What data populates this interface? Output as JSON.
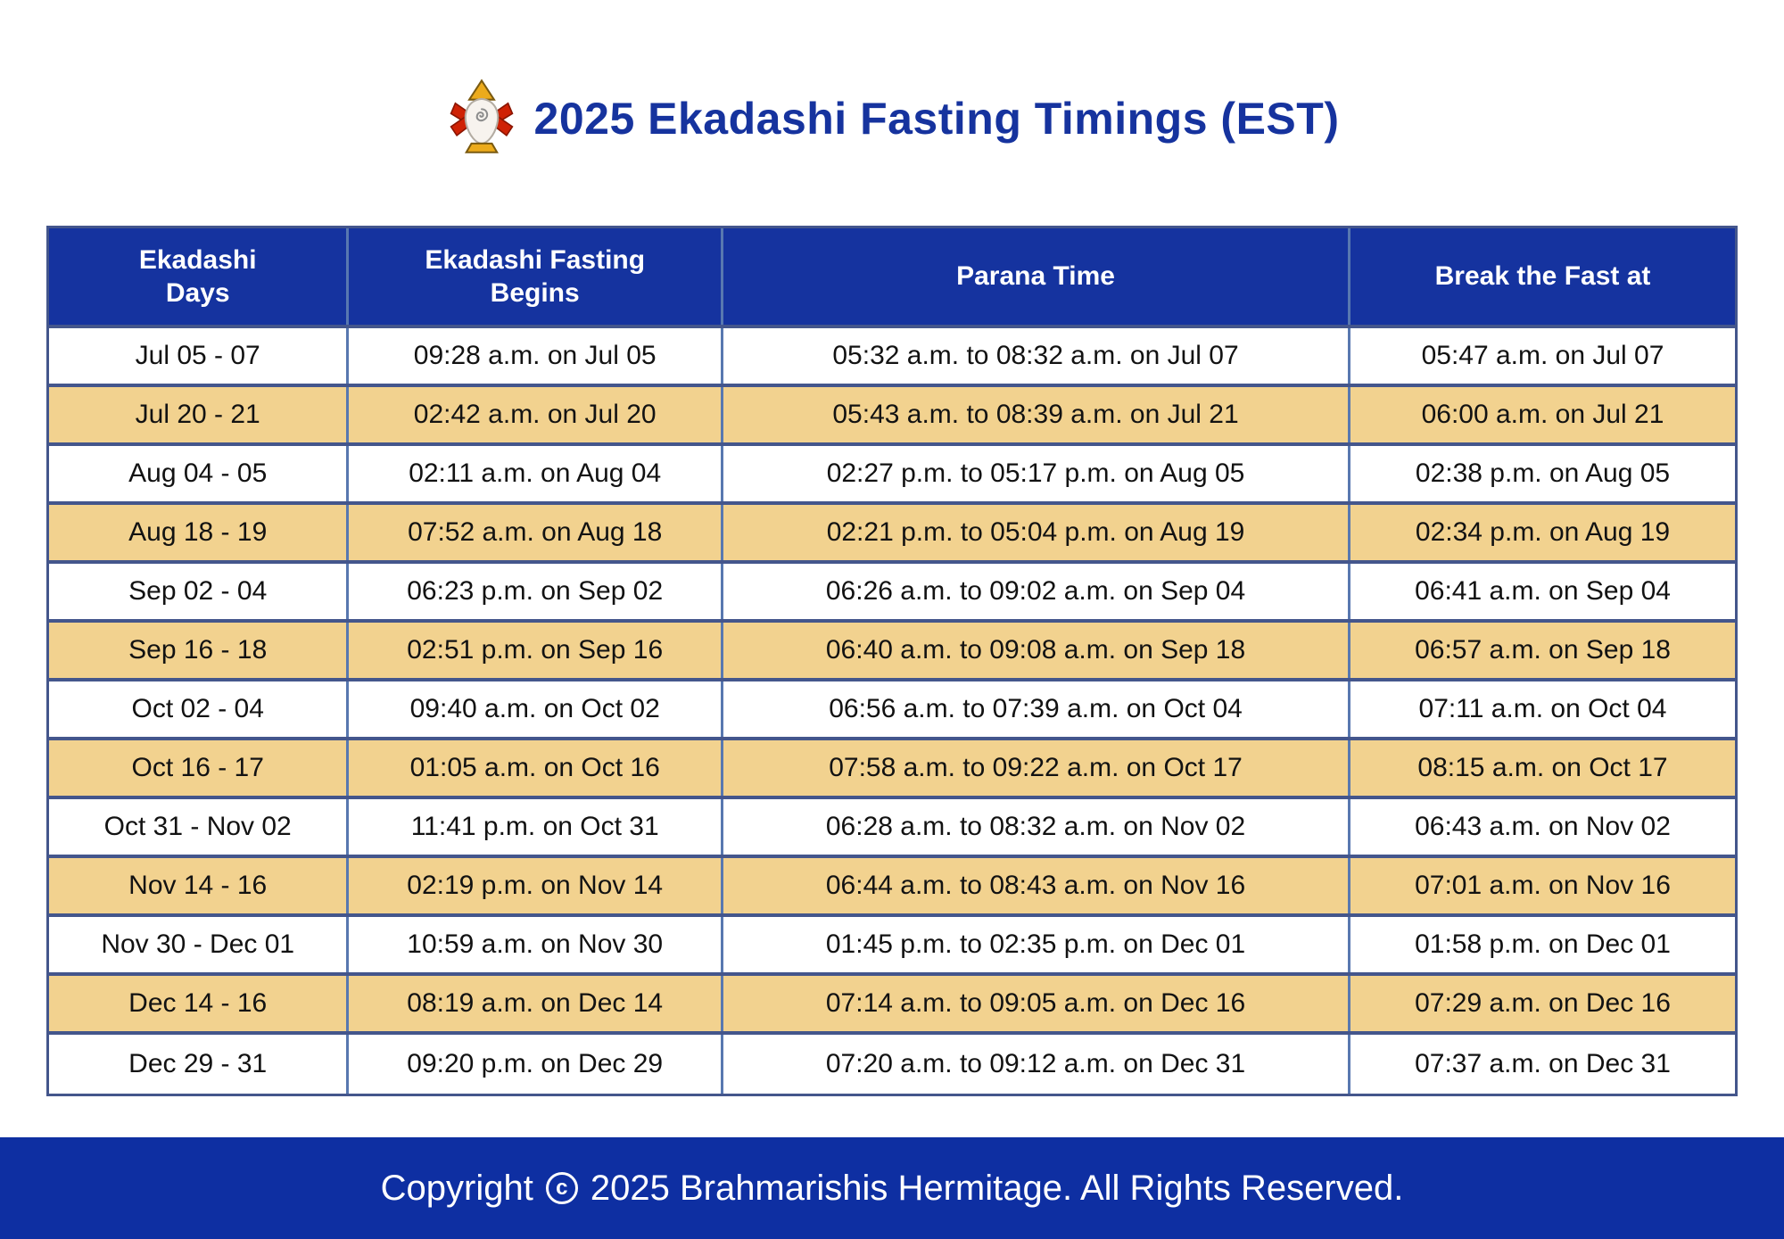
{
  "title": {
    "icon": "kalasha-icon",
    "text": "2025 Ekadashi Fasting Timings (EST)"
  },
  "colors": {
    "header_blue": "#15339f",
    "footer_blue": "#0e2fa2",
    "title_blue": "#16339e",
    "row_highlight_tan": "#f2d28f",
    "row_white": "#ffffff",
    "table_border": "#44568c",
    "cell_divider": "#5878b0",
    "body_text": "#121212",
    "header_text": "#ffffff"
  },
  "table": {
    "columns": [
      {
        "lines": [
          "Ekadashi",
          "Days"
        ]
      },
      {
        "lines": [
          "Ekadashi Fasting",
          "Begins"
        ]
      },
      {
        "lines": [
          "Parana Time"
        ]
      },
      {
        "lines": [
          "Break the Fast at"
        ]
      }
    ],
    "rows": [
      {
        "highlight": false,
        "cells": [
          "Jul 05 - 07",
          "09:28 a.m. on Jul 05",
          "05:32 a.m. to 08:32 a.m. on Jul 07",
          "05:47 a.m. on Jul 07"
        ]
      },
      {
        "highlight": true,
        "cells": [
          "Jul 20 - 21",
          "02:42 a.m. on Jul 20",
          "05:43 a.m. to 08:39 a.m. on Jul 21",
          "06:00 a.m. on Jul 21"
        ]
      },
      {
        "highlight": false,
        "cells": [
          "Aug 04 - 05",
          "02:11 a.m. on Aug 04",
          "02:27 p.m. to 05:17 p.m. on Aug 05",
          "02:38 p.m. on Aug 05"
        ]
      },
      {
        "highlight": true,
        "cells": [
          "Aug 18 - 19",
          "07:52 a.m. on Aug 18",
          "02:21 p.m. to 05:04 p.m. on Aug 19",
          "02:34 p.m. on Aug 19"
        ]
      },
      {
        "highlight": false,
        "cells": [
          "Sep 02 - 04",
          "06:23 p.m. on Sep 02",
          "06:26 a.m. to 09:02 a.m. on Sep 04",
          "06:41 a.m. on Sep 04"
        ]
      },
      {
        "highlight": true,
        "cells": [
          "Sep 16 - 18",
          "02:51 p.m. on Sep 16",
          "06:40 a.m. to 09:08 a.m. on Sep 18",
          "06:57 a.m. on Sep 18"
        ]
      },
      {
        "highlight": false,
        "cells": [
          "Oct 02 - 04",
          "09:40 a.m. on Oct 02",
          "06:56 a.m. to 07:39 a.m. on Oct 04",
          "07:11 a.m. on Oct 04"
        ]
      },
      {
        "highlight": true,
        "cells": [
          "Oct 16 - 17",
          "01:05 a.m. on Oct 16",
          "07:58 a.m. to 09:22 a.m. on Oct 17",
          "08:15 a.m. on Oct 17"
        ]
      },
      {
        "highlight": false,
        "cells": [
          "Oct 31 - Nov 02",
          "11:41 p.m. on Oct 31",
          "06:28 a.m. to 08:32 a.m. on Nov 02",
          "06:43 a.m. on Nov 02"
        ]
      },
      {
        "highlight": true,
        "cells": [
          "Nov 14 - 16",
          "02:19 p.m. on Nov 14",
          "06:44 a.m. to 08:43 a.m. on Nov 16",
          "07:01 a.m. on Nov 16"
        ]
      },
      {
        "highlight": false,
        "cells": [
          "Nov 30 - Dec 01",
          "10:59 a.m. on Nov 30",
          "01:45 p.m. to 02:35 p.m. on Dec 01",
          "01:58 p.m. on Dec 01"
        ]
      },
      {
        "highlight": true,
        "cells": [
          "Dec 14 - 16",
          "08:19 a.m. on Dec 14",
          "07:14 a.m. to 09:05 a.m. on Dec 16",
          "07:29 a.m. on Dec 16"
        ]
      },
      {
        "highlight": false,
        "cells": [
          "Dec 29 - 31",
          "09:20 p.m. on Dec 29",
          "07:20 a.m. to 09:12 a.m. on Dec 31",
          "07:37 a.m. on Dec 31"
        ]
      }
    ]
  },
  "footer": {
    "prefix": "Copyright",
    "symbol": "c",
    "suffix": "2025 Brahmarishis Hermitage. All Rights Reserved."
  }
}
